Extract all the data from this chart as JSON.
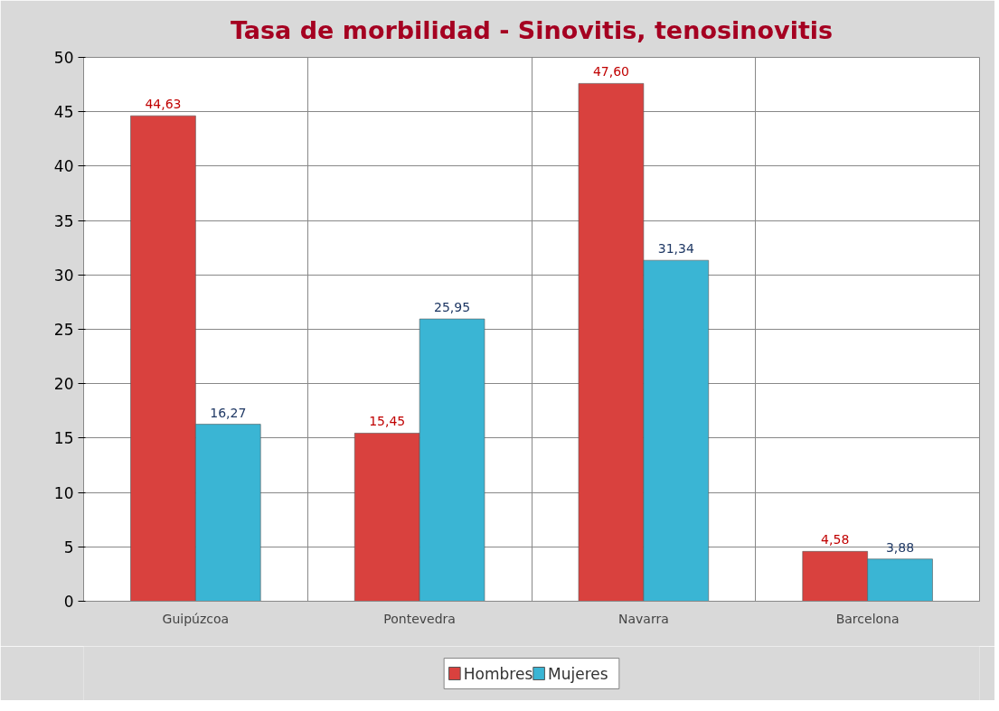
{
  "chart_data": {
    "type": "bar",
    "title": "Tasa de morbilidad - Sinovitis, tenosinovitis",
    "categories": [
      "Guipúzcoa",
      "Pontevedra",
      "Navarra",
      "Barcelona"
    ],
    "series": [
      {
        "name": "Hombres",
        "color": "#d9413e",
        "values": [
          44.63,
          15.45,
          47.6,
          4.58
        ],
        "value_labels": [
          "44,63",
          "15,45",
          "47,60",
          "4,58"
        ]
      },
      {
        "name": "Mujeres",
        "color": "#3ab5d4",
        "values": [
          16.27,
          25.95,
          31.34,
          3.88
        ],
        "value_labels": [
          "16,27",
          "25,95",
          "31,34",
          "3,88"
        ]
      }
    ],
    "ylim": [
      0,
      50
    ],
    "yticks": [
      0,
      5,
      10,
      15,
      20,
      25,
      30,
      35,
      40,
      45,
      50
    ],
    "grid": true,
    "legend": "bottom"
  }
}
